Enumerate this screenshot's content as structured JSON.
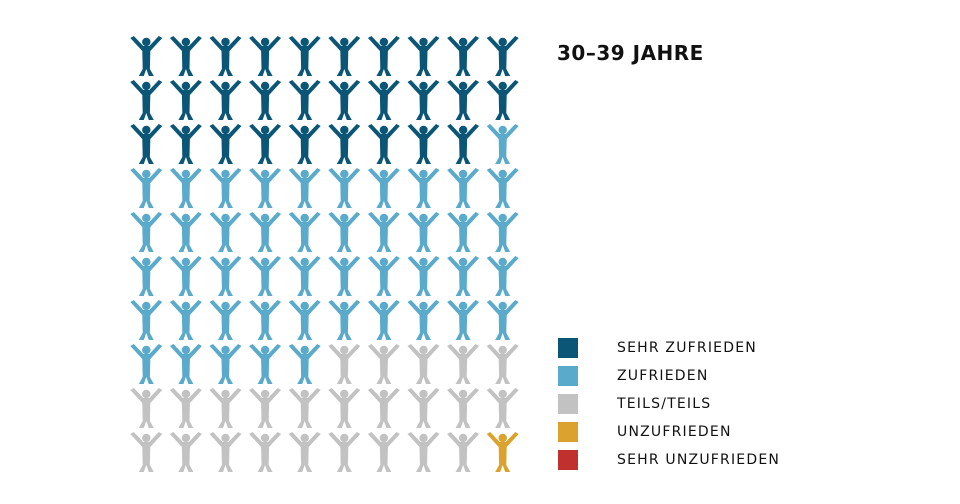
{
  "chart_data": {
    "type": "pictogram",
    "title": "30–39 JAHRE",
    "grid": {
      "rows": 10,
      "columns": 10
    },
    "categories": [
      {
        "label": "SEHR ZUFRIEDEN",
        "color": "#0b5676",
        "count": 29
      },
      {
        "label": "ZUFRIEDEN",
        "color": "#5aaacb",
        "count": 46
      },
      {
        "label": "TEILS/TEILS",
        "color": "#c2c2c2",
        "count": 24
      },
      {
        "label": "UNZUFRIEDEN",
        "color": "#dba22e",
        "count": 1
      },
      {
        "label": "SEHR UNZUFRIEDEN",
        "color": "#c0302e",
        "count": 0
      }
    ]
  }
}
